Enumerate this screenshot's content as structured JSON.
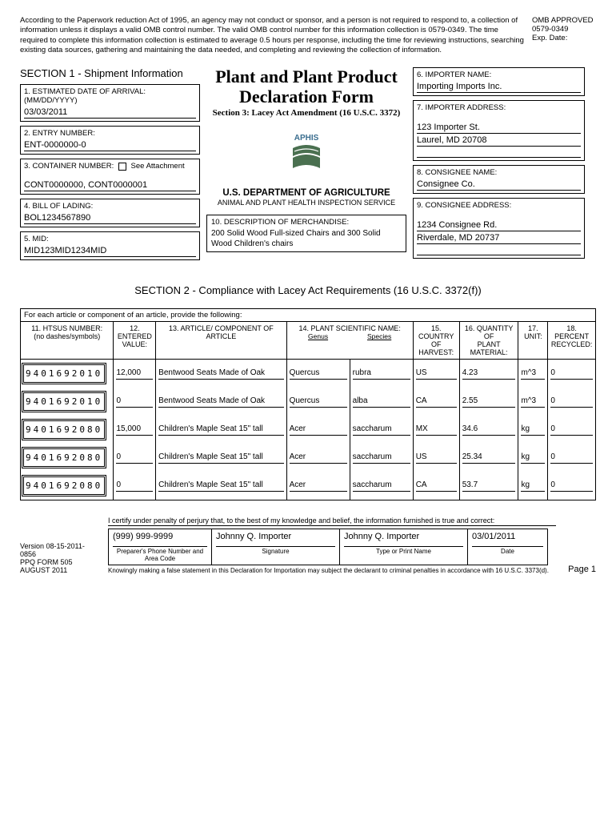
{
  "disclaimer": "According to the Paperwork reduction Act of 1995, an agency may not conduct or sponsor, and a person is not required to respond to, a collection of information unless it displays a valid OMB control number. The valid OMB control number for this information collection is 0579-0349. The time required to complete this information collection is estimated to average 0.5 hours per response, including the time for reviewing instructions, searching existing data sources, gathering and maintaining the data needed, and completing and reviewing the collection of information.",
  "omb": {
    "approved": "OMB APPROVED",
    "number": "0579-0349",
    "exp": "Exp. Date:"
  },
  "section1_title": "SECTION 1 - Shipment Information",
  "form_title_1": "Plant and Plant Product",
  "form_title_2": "Declaration Form",
  "form_subtitle": "Section 3: Lacey Act Amendment (16 U.S.C. 3372)",
  "aphis": "APHIS",
  "dept": "U.S. DEPARTMENT OF AGRICULTURE",
  "dept_sub": "ANIMAL AND PLANT HEALTH INSPECTION SERVICE",
  "fields": {
    "f1_label": "1. ESTIMATED DATE OF ARRIVAL: (MM/DD/YYYY)",
    "f1_value": "03/03/2011",
    "f2_label": "2. ENTRY NUMBER:",
    "f2_value": "ENT-0000000-0",
    "f3_label": "3. CONTAINER NUMBER:",
    "f3_attach": "See Attachment",
    "f3_value": "CONT0000000, CONT0000001",
    "f4_label": "4. BILL OF LADING:",
    "f4_value": "BOL1234567890",
    "f5_label": "5. MID:",
    "f5_value": "MID123MID1234MID",
    "f6_label": "6. IMPORTER NAME:",
    "f6_value": "Importing Imports Inc.",
    "f7_label": "7. IMPORTER ADDRESS:",
    "f7_value1": "123 Importer St.",
    "f7_value2": "Laurel, MD 20708",
    "f8_label": "8. CONSIGNEE NAME:",
    "f8_value": "Consignee Co.",
    "f9_label": "9. CONSIGNEE ADDRESS:",
    "f9_value1": "1234 Consignee Rd.",
    "f9_value2": "Riverdale, MD 20737",
    "f10_label": "10. DESCRIPTION OF MERCHANDISE:",
    "f10_value": "200 Solid Wood Full-sized Chairs and 300 Solid Wood Children's chairs"
  },
  "section2_title": "SECTION 2 - Compliance with Lacey Act Requirements (16 U.S.C. 3372(f))",
  "table_intro": "For each article or component of an article, provide the following:",
  "headers": {
    "h11a": "11. HTSUS NUMBER:",
    "h11b": "(no dashes/symbols)",
    "h12a": "12. ENTERED",
    "h12b": "VALUE:",
    "h13": "13. ARTICLE/ COMPONENT OF ARTICLE",
    "h14": "14. PLANT SCIENTIFIC NAME:",
    "h14a": "Genus",
    "h14b": "Species",
    "h15a": "15. COUNTRY",
    "h15b": "OF HARVEST:",
    "h16a": "16. QUANTITY OF",
    "h16b": "PLANT MATERIAL:",
    "h17": "17. UNIT:",
    "h18a": "18. PERCENT",
    "h18b": "RECYCLED:"
  },
  "rows": [
    {
      "htsus": "9401692010",
      "val": "12,000",
      "article": "Bentwood Seats Made of Oak",
      "genus": "Quercus",
      "species": "rubra",
      "country": "US",
      "qty": "4.23",
      "unit": "m^3",
      "rec": "0"
    },
    {
      "htsus": "9401692010",
      "val": "0",
      "article": "Bentwood Seats Made of Oak",
      "genus": "Quercus",
      "species": "alba",
      "country": "CA",
      "qty": "2.55",
      "unit": "m^3",
      "rec": "0"
    },
    {
      "htsus": "9401692080",
      "val": "15,000",
      "article": "Children's Maple Seat 15\" tall",
      "genus": "Acer",
      "species": "saccharum",
      "country": "MX",
      "qty": "34.6",
      "unit": "kg",
      "rec": "0"
    },
    {
      "htsus": "9401692080",
      "val": "0",
      "article": "Children's Maple Seat 15\" tall",
      "genus": "Acer",
      "species": "saccharum",
      "country": "US",
      "qty": "25.34",
      "unit": "kg",
      "rec": "0"
    },
    {
      "htsus": "9401692080",
      "val": "0",
      "article": "Children's Maple Seat 15\" tall",
      "genus": "Acer",
      "species": "saccharum",
      "country": "CA",
      "qty": "53.7",
      "unit": "kg",
      "rec": "0"
    }
  ],
  "cert": "I certify under penalty of perjury that, to the best of my knowledge and belief, the information furnished is true and correct:",
  "version": {
    "l1": "Version 08-15-2011-0856",
    "l2": "PPQ FORM 505",
    "l3": "AUGUST 2011"
  },
  "sig": {
    "phone": "(999) 999-9999",
    "phone_label": "Preparer's Phone Number and Area Code",
    "signature": "Johnny Q. Importer",
    "signature_label": "Signature",
    "printname": "Johnny Q. Importer",
    "printname_label": "Type or Print Name",
    "date": "03/01/2011",
    "date_label": "Date"
  },
  "warning": "Knowingly making a false statement in this Declaration for Importation may subject the declarant to criminal penalties in accordance with 16 U.S.C. 3373(d).",
  "page": "Page 1",
  "logo_colors": {
    "text": "#3b6e8f",
    "green": "#4a7050",
    "white": "#ffffff"
  },
  "col_widths": {
    "htsus": 110,
    "val": 50,
    "article": 155,
    "genus": 75,
    "species": 75,
    "country": 55,
    "qty": 70,
    "unit": 35,
    "rec": 50
  }
}
